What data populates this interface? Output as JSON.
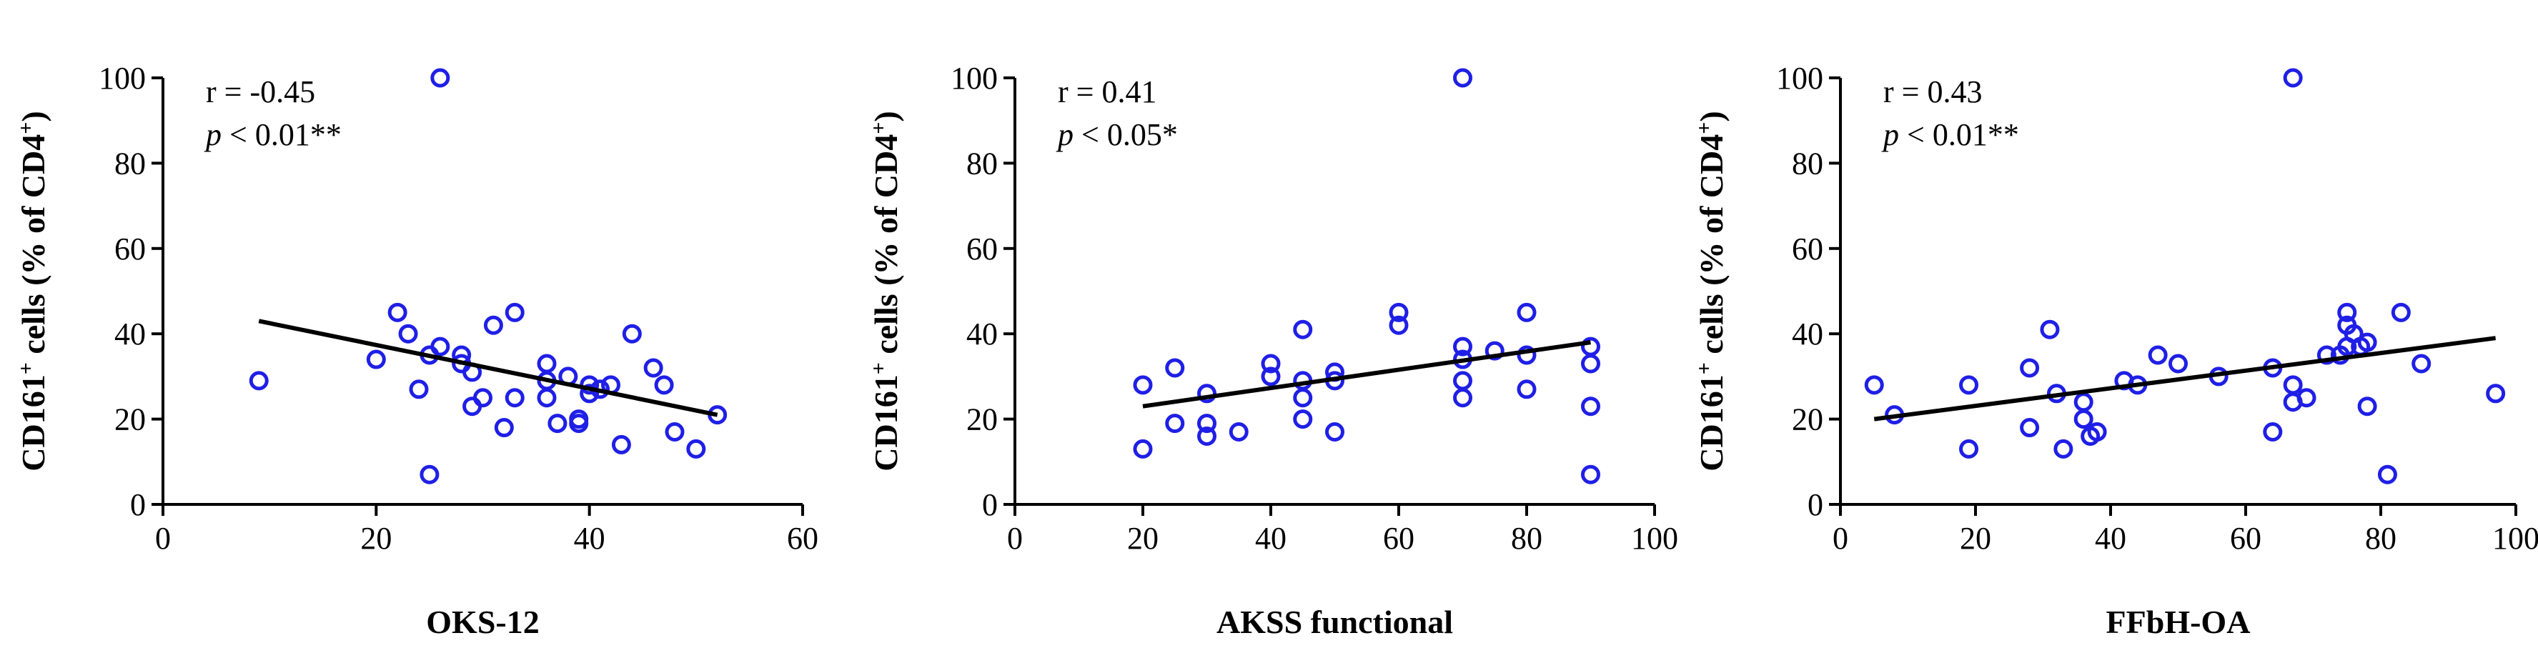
{
  "style": {
    "marker_color": "#1f1fe6",
    "axis_color": "#000000",
    "fit_line_color": "#000000"
  },
  "chart_data": [
    {
      "type": "scatter",
      "xlabel": "OKS-12",
      "ylabel": {
        "main": "CD161",
        "sup": "+",
        "rest": " cells (% of CD4",
        "sup2": "+",
        "end": ")"
      },
      "xlim": [
        0,
        60
      ],
      "ylim": [
        0,
        100
      ],
      "xticks": [
        0,
        20,
        40,
        60
      ],
      "yticks": [
        0,
        20,
        40,
        60,
        80,
        100
      ],
      "annotation": {
        "r": "r = -0.45",
        "p_symbol": "p",
        "p_rest": " < 0.01**"
      },
      "fit_line": [
        [
          9,
          43
        ],
        [
          52,
          21
        ]
      ],
      "points": [
        [
          9,
          29
        ],
        [
          20,
          34
        ],
        [
          22,
          45
        ],
        [
          23,
          40
        ],
        [
          24,
          27
        ],
        [
          25,
          35
        ],
        [
          25,
          7
        ],
        [
          26,
          100
        ],
        [
          26,
          37
        ],
        [
          28,
          35
        ],
        [
          28,
          33
        ],
        [
          29,
          31
        ],
        [
          29,
          23
        ],
        [
          30,
          25
        ],
        [
          31,
          42
        ],
        [
          32,
          18
        ],
        [
          33,
          45
        ],
        [
          33,
          25
        ],
        [
          36,
          33
        ],
        [
          36,
          25
        ],
        [
          36,
          29
        ],
        [
          37,
          19
        ],
        [
          38,
          30
        ],
        [
          39,
          20
        ],
        [
          39,
          19
        ],
        [
          40,
          28
        ],
        [
          40,
          26
        ],
        [
          41,
          27
        ],
        [
          42,
          28
        ],
        [
          43,
          14
        ],
        [
          44,
          40
        ],
        [
          46,
          32
        ],
        [
          47,
          28
        ],
        [
          48,
          17
        ],
        [
          50,
          13
        ],
        [
          52,
          21
        ]
      ]
    },
    {
      "type": "scatter",
      "xlabel": "AKSS functional",
      "ylabel": {
        "main": "CD161",
        "sup": "+",
        "rest": " cells (% of CD4",
        "sup2": "+",
        "end": ")"
      },
      "xlim": [
        0,
        100
      ],
      "ylim": [
        0,
        100
      ],
      "xticks": [
        0,
        20,
        40,
        60,
        80,
        100
      ],
      "yticks": [
        0,
        20,
        40,
        60,
        80,
        100
      ],
      "annotation": {
        "r": "r = 0.41",
        "p_symbol": "p",
        "p_rest": " < 0.05*"
      },
      "fit_line": [
        [
          20,
          23
        ],
        [
          90,
          38
        ]
      ],
      "points": [
        [
          20,
          28
        ],
        [
          20,
          13
        ],
        [
          25,
          32
        ],
        [
          25,
          19
        ],
        [
          30,
          26
        ],
        [
          30,
          19
        ],
        [
          30,
          16
        ],
        [
          35,
          17
        ],
        [
          40,
          33
        ],
        [
          40,
          30
        ],
        [
          45,
          41
        ],
        [
          45,
          29
        ],
        [
          45,
          25
        ],
        [
          45,
          20
        ],
        [
          50,
          31
        ],
        [
          50,
          29
        ],
        [
          50,
          17
        ],
        [
          60,
          45
        ],
        [
          60,
          42
        ],
        [
          70,
          100
        ],
        [
          70,
          37
        ],
        [
          70,
          34
        ],
        [
          70,
          29
        ],
        [
          70,
          25
        ],
        [
          75,
          36
        ],
        [
          80,
          45
        ],
        [
          80,
          35
        ],
        [
          80,
          27
        ],
        [
          90,
          37
        ],
        [
          90,
          33
        ],
        [
          90,
          23
        ],
        [
          90,
          7
        ]
      ]
    },
    {
      "type": "scatter",
      "xlabel": "FFbH-OA",
      "ylabel": {
        "main": "CD161",
        "sup": "+",
        "rest": " cells (% of CD4",
        "sup2": "+",
        "end": ")"
      },
      "xlim": [
        0,
        100
      ],
      "ylim": [
        0,
        100
      ],
      "xticks": [
        0,
        20,
        40,
        60,
        80,
        100
      ],
      "yticks": [
        0,
        20,
        40,
        60,
        80,
        100
      ],
      "annotation": {
        "r": "r = 0.43",
        "p_symbol": "p",
        "p_rest": " < 0.01**"
      },
      "fit_line": [
        [
          5,
          20
        ],
        [
          97,
          39
        ]
      ],
      "points": [
        [
          5,
          28
        ],
        [
          8,
          21
        ],
        [
          19,
          28
        ],
        [
          19,
          13
        ],
        [
          28,
          32
        ],
        [
          28,
          18
        ],
        [
          31,
          41
        ],
        [
          32,
          26
        ],
        [
          33,
          13
        ],
        [
          36,
          24
        ],
        [
          36,
          20
        ],
        [
          37,
          16
        ],
        [
          38,
          17
        ],
        [
          42,
          29
        ],
        [
          44,
          28
        ],
        [
          47,
          35
        ],
        [
          50,
          33
        ],
        [
          56,
          30
        ],
        [
          64,
          32
        ],
        [
          64,
          17
        ],
        [
          67,
          100
        ],
        [
          67,
          28
        ],
        [
          67,
          24
        ],
        [
          69,
          25
        ],
        [
          72,
          35
        ],
        [
          74,
          35
        ],
        [
          75,
          45
        ],
        [
          75,
          42
        ],
        [
          75,
          37
        ],
        [
          76,
          40
        ],
        [
          77,
          37
        ],
        [
          78,
          38
        ],
        [
          78,
          23
        ],
        [
          81,
          7
        ],
        [
          83,
          45
        ],
        [
          86,
          33
        ],
        [
          97,
          26
        ]
      ]
    }
  ]
}
